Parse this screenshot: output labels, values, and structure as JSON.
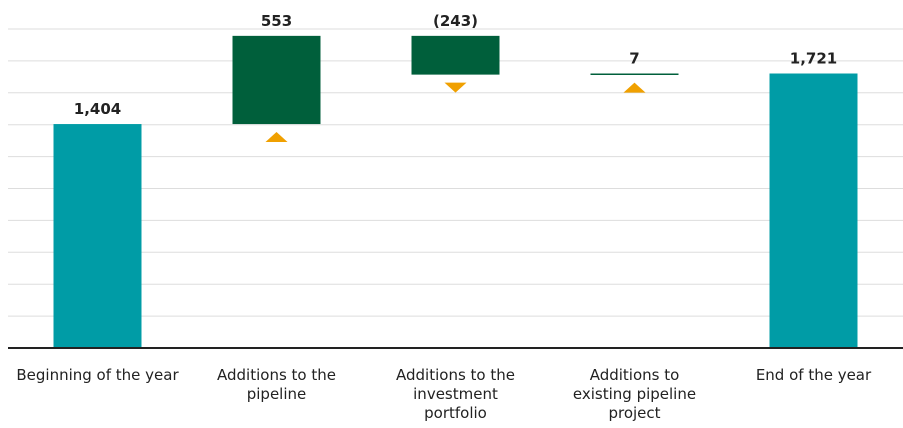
{
  "chart_data": {
    "type": "waterfall",
    "categories": [
      "Beginning of the year",
      "Additions to the pipeline",
      "Additions to the investment portfolio",
      "Additions to existing pipeline project",
      "End of the year"
    ],
    "values": [
      1404,
      553,
      -243,
      7,
      1721
    ],
    "value_labels": [
      "1,404",
      "553",
      "(243)",
      "7",
      "1,721"
    ],
    "total_color": "#009ca6",
    "change_color": "#005f3b",
    "marker_color": "#f0a000",
    "ylim": [
      0,
      2000
    ],
    "yticks": [
      0,
      200,
      400,
      600,
      800,
      1000,
      1200,
      1400,
      1600,
      1800,
      2000
    ],
    "grid": true
  }
}
